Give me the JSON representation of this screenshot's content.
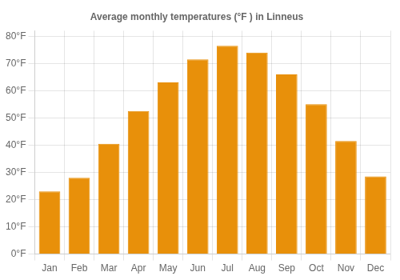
{
  "chart_data": {
    "type": "bar",
    "title": "Average monthly temperatures (°F ) in Linneus",
    "categories": [
      "Jan",
      "Feb",
      "Mar",
      "Apr",
      "May",
      "Jun",
      "Jul",
      "Aug",
      "Sep",
      "Oct",
      "Nov",
      "Dec"
    ],
    "values": [
      23,
      28,
      40.5,
      52.5,
      63,
      71.5,
      76.5,
      74,
      66,
      55,
      41.5,
      28.5
    ],
    "color": "#E8900A",
    "ylim": [
      0,
      82
    ],
    "yticks": [
      {
        "value": 0,
        "label": "0°F"
      },
      {
        "value": 10,
        "label": "10°F"
      },
      {
        "value": 20,
        "label": "20°F"
      },
      {
        "value": 30,
        "label": "30°F"
      },
      {
        "value": 40,
        "label": "40°F"
      },
      {
        "value": 50,
        "label": "50°F"
      },
      {
        "value": 60,
        "label": "60°F"
      },
      {
        "value": 70,
        "label": "70°F"
      },
      {
        "value": 80,
        "label": "80°F"
      }
    ],
    "grid": true
  }
}
